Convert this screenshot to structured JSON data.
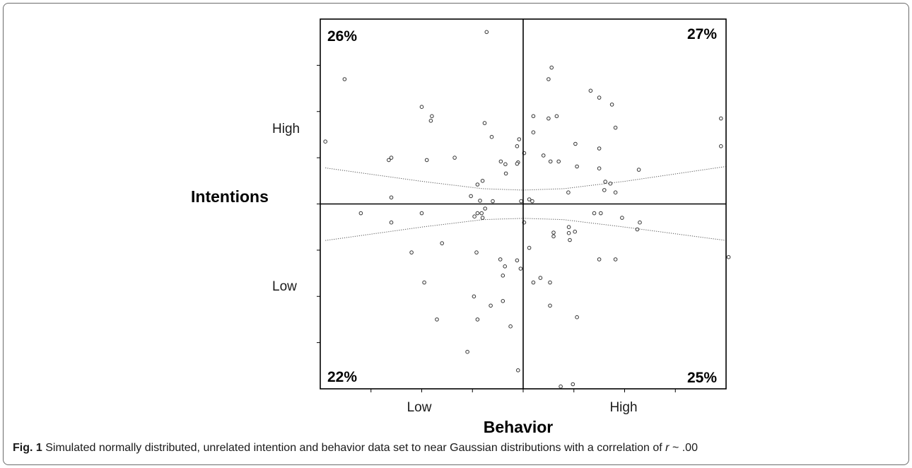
{
  "chart_data": {
    "type": "scatter",
    "xlabel": "Behavior",
    "ylabel": "Intentions",
    "x_tick_labels": [
      "Low",
      "High"
    ],
    "y_tick_labels": [
      "High",
      "Low"
    ],
    "xlim": [
      -4,
      4
    ],
    "ylim": [
      -4,
      4
    ],
    "grid": false,
    "quadrant_lines": {
      "x": 0,
      "y": 0
    },
    "quadrant_labels": {
      "top_left": "26%",
      "top_right": "27%",
      "bottom_left": "22%",
      "bottom_right": "25%"
    },
    "confidence_band": {
      "upper": [
        [
          -3.9,
          0.78
        ],
        [
          -2.0,
          0.49
        ],
        [
          -0.8,
          0.33
        ],
        [
          0,
          0.3
        ],
        [
          0.8,
          0.33
        ],
        [
          2.0,
          0.49
        ],
        [
          4.0,
          0.81
        ]
      ],
      "lower": [
        [
          -3.9,
          -0.79
        ],
        [
          -2.0,
          -0.5
        ],
        [
          -0.8,
          -0.34
        ],
        [
          0,
          -0.31
        ],
        [
          0.8,
          -0.34
        ],
        [
          2.0,
          -0.5
        ],
        [
          4.0,
          -0.79
        ]
      ]
    },
    "points": [
      [
        -0.72,
        3.72
      ],
      [
        -3.52,
        2.7
      ],
      [
        -3.9,
        1.35
      ],
      [
        -2.0,
        2.1
      ],
      [
        -1.82,
        1.8
      ],
      [
        -1.8,
        1.9
      ],
      [
        -0.76,
        1.75
      ],
      [
        -0.62,
        1.45
      ],
      [
        -1.35,
        1.0
      ],
      [
        -1.9,
        0.95
      ],
      [
        -2.6,
        1.0
      ],
      [
        -2.65,
        0.95
      ],
      [
        -0.08,
        1.4
      ],
      [
        -0.12,
        1.25
      ],
      [
        -0.44,
        0.92
      ],
      [
        -0.35,
        0.86
      ],
      [
        -0.1,
        0.9
      ],
      [
        -0.34,
        0.66
      ],
      [
        -0.12,
        0.87
      ],
      [
        0.02,
        1.1
      ],
      [
        0.2,
        1.55
      ],
      [
        0.2,
        1.9
      ],
      [
        0.5,
        1.85
      ],
      [
        0.66,
        1.9
      ],
      [
        0.5,
        2.7
      ],
      [
        0.56,
        2.95
      ],
      [
        0.4,
        1.05
      ],
      [
        0.54,
        0.92
      ],
      [
        0.7,
        0.92
      ],
      [
        1.03,
        1.3
      ],
      [
        1.06,
        0.81
      ],
      [
        1.5,
        1.2
      ],
      [
        1.5,
        2.3
      ],
      [
        1.82,
        1.65
      ],
      [
        1.75,
        2.15
      ],
      [
        1.5,
        0.77
      ],
      [
        1.62,
        0.48
      ],
      [
        1.72,
        0.44
      ],
      [
        1.6,
        0.3
      ],
      [
        1.82,
        0.25
      ],
      [
        2.28,
        0.74
      ],
      [
        3.9,
        1.85
      ],
      [
        3.9,
        1.25
      ],
      [
        1.33,
        2.45
      ],
      [
        0.89,
        0.25
      ],
      [
        -0.8,
        0.5
      ],
      [
        -0.9,
        0.42
      ],
      [
        -0.85,
        0.07
      ],
      [
        -1.03,
        0.17
      ],
      [
        -0.6,
        0.06
      ],
      [
        -0.04,
        0.06
      ],
      [
        0.12,
        0.1
      ],
      [
        0.18,
        0.06
      ],
      [
        -2.6,
        0.14
      ],
      [
        -3.2,
        -0.2
      ],
      [
        -2.6,
        -0.4
      ],
      [
        -2.0,
        -0.2
      ],
      [
        -0.9,
        -0.2
      ],
      [
        -0.96,
        -0.27
      ],
      [
        -0.82,
        -0.2
      ],
      [
        -0.75,
        -0.1
      ],
      [
        -0.8,
        -0.3
      ],
      [
        0.02,
        -0.4
      ],
      [
        0.9,
        -0.5
      ],
      [
        1.4,
        -0.2
      ],
      [
        1.53,
        -0.2
      ],
      [
        1.95,
        -0.3
      ],
      [
        2.25,
        -0.55
      ],
      [
        2.3,
        -0.4
      ],
      [
        0.9,
        -0.63
      ],
      [
        0.92,
        -0.78
      ],
      [
        0.6,
        -0.62
      ],
      [
        0.6,
        -0.7
      ],
      [
        1.02,
        -0.6
      ],
      [
        -1.6,
        -0.85
      ],
      [
        -2.2,
        -1.05
      ],
      [
        0.12,
        -0.95
      ],
      [
        -0.92,
        -1.05
      ],
      [
        -0.45,
        -1.2
      ],
      [
        -0.36,
        -1.35
      ],
      [
        -0.12,
        -1.22
      ],
      [
        -0.05,
        -1.4
      ],
      [
        -0.4,
        -1.55
      ],
      [
        0.2,
        -1.7
      ],
      [
        0.34,
        -1.6
      ],
      [
        0.53,
        -1.7
      ],
      [
        -1.95,
        -1.7
      ],
      [
        -0.97,
        -2.0
      ],
      [
        -0.64,
        -2.2
      ],
      [
        -0.4,
        -2.1
      ],
      [
        -1.7,
        -2.5
      ],
      [
        -0.9,
        -2.5
      ],
      [
        -0.25,
        -2.65
      ],
      [
        0.53,
        -2.2
      ],
      [
        1.5,
        -1.2
      ],
      [
        1.82,
        -1.2
      ],
      [
        4.05,
        -1.15
      ],
      [
        1.06,
        -2.45
      ],
      [
        -1.1,
        -3.2
      ],
      [
        -0.1,
        -3.6
      ],
      [
        0.98,
        -3.9
      ],
      [
        0.74,
        -3.95
      ]
    ]
  },
  "caption": {
    "label": "Fig. 1",
    "text_before": " Simulated normally distributed, unrelated intention and behavior data set to near Gaussian distributions with a correlation of ",
    "r_symbol": "r",
    "text_after": " ~ .00"
  }
}
